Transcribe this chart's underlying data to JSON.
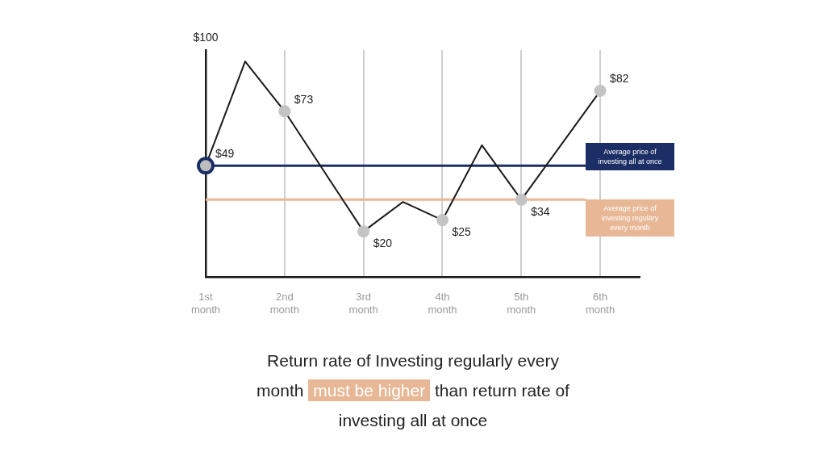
{
  "chart_data": {
    "type": "line",
    "categories": [
      "1st month",
      null,
      "2nd month",
      null,
      "3rd month",
      null,
      "4th month",
      null,
      "5th month",
      null,
      "6th month",
      null
    ],
    "values": [
      49,
      95,
      73,
      null,
      20,
      33,
      25,
      58,
      34,
      null,
      82,
      null
    ],
    "value_labels": [
      "$49",
      null,
      "$73",
      null,
      "$20",
      null,
      "$25",
      null,
      "$34",
      null,
      "$82",
      null
    ],
    "color": "#1a1a1a",
    "colors": [
      "#1b2f66",
      null,
      "#c4c4c4",
      null,
      "#c4c4c4",
      null,
      "#c4c4c4",
      null,
      "#c4c4c4",
      null,
      "#c4c4c4",
      null
    ],
    "ylim": [
      0,
      100
    ],
    "grid": "x",
    "ref_lines": [
      {
        "axis": "y",
        "value": 49,
        "label": "Average price of investing all at once",
        "color": "#1b2f66"
      },
      {
        "axis": "y",
        "value": 34,
        "label": "Average price of investing regulary every month",
        "color": "#e8b896"
      }
    ],
    "annotations": [
      "Return rate of Investing regularly every month",
      "must be higher",
      "than return rate of investing all at once",
      "$100"
    ]
  }
}
